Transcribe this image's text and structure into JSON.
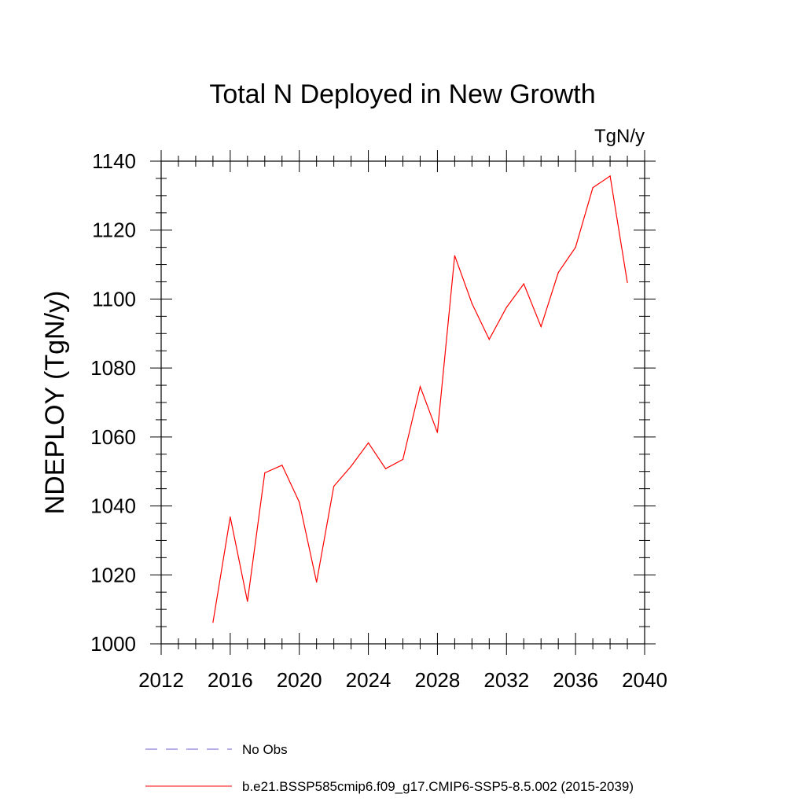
{
  "chart_data": {
    "type": "line",
    "title": "Total N Deployed in New Growth",
    "units": "TgN/y",
    "xlabel": "",
    "ylabel": "NDEPLOY  (TgN/y)",
    "xlim": [
      2012,
      2040
    ],
    "ylim": [
      1000,
      1140
    ],
    "xticks": [
      2012,
      2016,
      2020,
      2024,
      2028,
      2032,
      2036,
      2040
    ],
    "yticks": [
      1000,
      1020,
      1040,
      1060,
      1080,
      1100,
      1120,
      1140
    ],
    "grid": false,
    "legend_position": "bottom",
    "legend": [
      {
        "label": "No Obs",
        "color": "#6a5acd",
        "style": "dashed"
      },
      {
        "label": "b.e21.BSSP585cmip6.f09_g17.CMIP6-SSP5-8.5.002 (2015-2039)",
        "color": "#ff0000",
        "style": "solid"
      }
    ],
    "series": [
      {
        "name": "b.e21.BSSP585cmip6.f09_g17.CMIP6-SSP5-8.5.002 (2015-2039)",
        "color": "#ff0000",
        "x": [
          2015,
          2016,
          2017,
          2018,
          2019,
          2020,
          2021,
          2022,
          2023,
          2024,
          2025,
          2026,
          2027,
          2028,
          2029,
          2030,
          2031,
          2032,
          2033,
          2034,
          2035,
          2036,
          2037,
          2038,
          2039
        ],
        "y": [
          1006.2,
          1036.8,
          1012.3,
          1049.6,
          1051.8,
          1041.1,
          1017.9,
          1045.7,
          1051.5,
          1058.3,
          1050.8,
          1053.5,
          1074.6,
          1061.3,
          1112.6,
          1098.7,
          1088.3,
          1097.6,
          1104.4,
          1092.0,
          1107.7,
          1115.0,
          1132.3,
          1135.7,
          1104.8
        ]
      }
    ]
  }
}
